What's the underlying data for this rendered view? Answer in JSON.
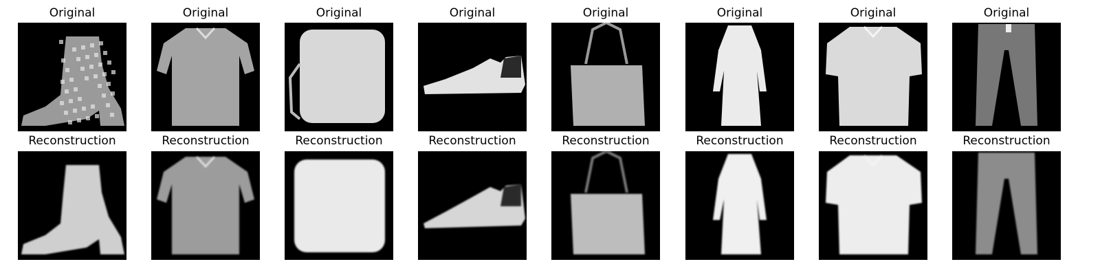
{
  "figure": {
    "columns": [
      {
        "original_title": "Original",
        "reconstruction_title": "Reconstruction",
        "item": "ankle boot"
      },
      {
        "original_title": "Original",
        "reconstruction_title": "Reconstruction",
        "item": "shirt"
      },
      {
        "original_title": "Original",
        "reconstruction_title": "Reconstruction",
        "item": "bag square"
      },
      {
        "original_title": "Original",
        "reconstruction_title": "Reconstruction",
        "item": "sneaker"
      },
      {
        "original_title": "Original",
        "reconstruction_title": "Reconstruction",
        "item": "handbag"
      },
      {
        "original_title": "Original",
        "reconstruction_title": "Reconstruction",
        "item": "dress"
      },
      {
        "original_title": "Original",
        "reconstruction_title": "Reconstruction",
        "item": "t-shirt"
      },
      {
        "original_title": "Original",
        "reconstruction_title": "Reconstruction",
        "item": "trouser"
      }
    ]
  }
}
